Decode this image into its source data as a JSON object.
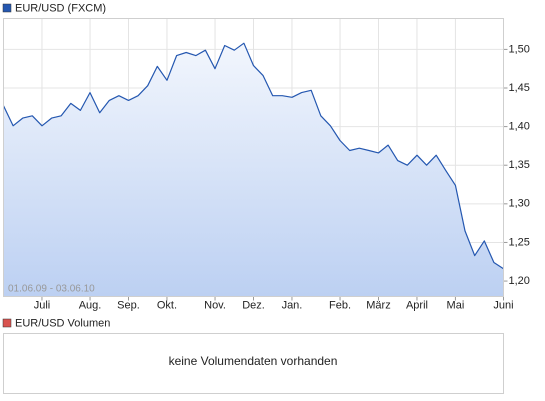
{
  "chart_data": {
    "type": "line",
    "date_range": "01.06.09 - 03.06.10",
    "categories": [
      null,
      null,
      null,
      null,
      "Juli",
      null,
      null,
      null,
      null,
      "Aug.",
      null,
      null,
      null,
      "Sep.",
      null,
      null,
      null,
      "Okt.",
      null,
      null,
      null,
      null,
      "Nov.",
      null,
      null,
      null,
      "Dez.",
      null,
      null,
      null,
      "Jan.",
      null,
      null,
      null,
      null,
      "Feb.",
      null,
      null,
      null,
      "März",
      null,
      null,
      null,
      "April",
      null,
      null,
      null,
      "Mai",
      null,
      null,
      null,
      null,
      "Juni"
    ],
    "series": [
      {
        "name": "EUR/USD (FXCM)",
        "color": "#2457b0",
        "values": [
          1.427,
          1.401,
          1.411,
          1.414,
          1.401,
          1.411,
          1.414,
          1.43,
          1.421,
          1.444,
          1.418,
          1.434,
          1.44,
          1.434,
          1.44,
          1.453,
          1.478,
          1.46,
          1.492,
          1.496,
          1.492,
          1.499,
          1.475,
          1.505,
          1.499,
          1.508,
          1.479,
          1.466,
          1.44,
          1.44,
          1.438,
          1.444,
          1.447,
          1.414,
          1.401,
          1.382,
          1.369,
          1.372,
          1.369,
          1.366,
          1.376,
          1.356,
          1.35,
          1.363,
          1.35,
          1.363,
          1.343,
          1.324,
          1.265,
          1.233,
          1.252,
          1.224,
          1.216
        ]
      }
    ],
    "ylim": [
      1.18,
      1.54
    ],
    "yticks": [
      {
        "value": 1.2,
        "label": "1,20"
      },
      {
        "value": 1.25,
        "label": "1,25"
      },
      {
        "value": 1.3,
        "label": "1,30"
      },
      {
        "value": 1.35,
        "label": "1,35"
      },
      {
        "value": 1.4,
        "label": "1,40"
      },
      {
        "value": 1.45,
        "label": "1,45"
      },
      {
        "value": 1.5,
        "label": "1,50"
      }
    ],
    "grid": true
  },
  "volume_panel": {
    "title": "EUR/USD Volumen",
    "color": "#d9534f",
    "message": "keine Volumendaten vorhanden"
  }
}
